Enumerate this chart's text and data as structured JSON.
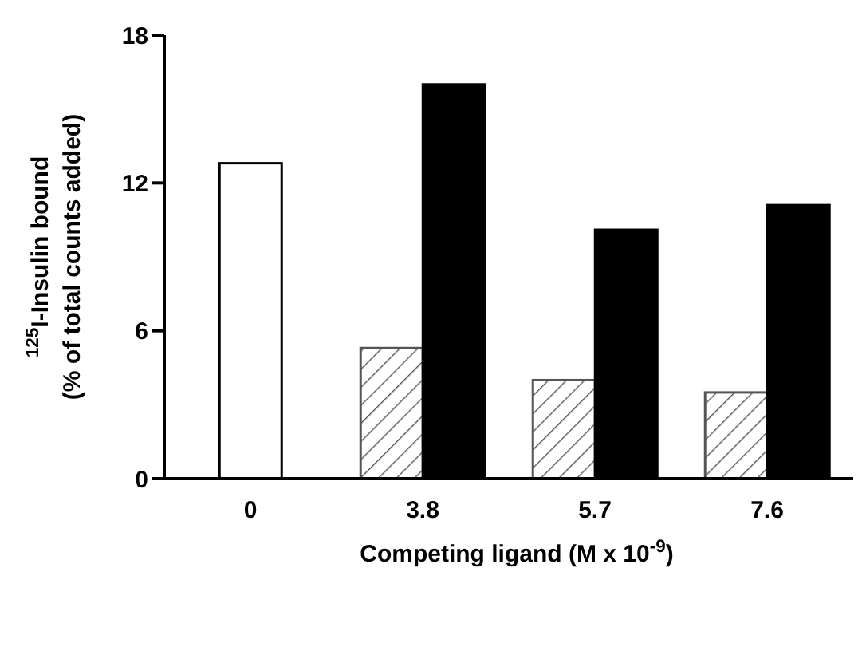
{
  "chart_data": {
    "type": "bar",
    "xlabel": "Competing ligand (M x 10$^{-9}$)",
    "ylabel": "$^{125}$I-Insulin bound\n(% of total counts added)",
    "categories": [
      "0",
      "3.8",
      "5.7",
      "7.6"
    ],
    "series": [
      {
        "colors": [
          "#ffffff",
          "#555555",
          "#555555",
          "#555555"
        ],
        "values": [
          12.8,
          5.3,
          4.0,
          3.5
        ]
      },
      {
        "color": "#000000",
        "values": [
          null,
          16,
          10.1,
          11.1
        ]
      }
    ],
    "ylim": [
      0,
      18
    ],
    "yticks": [
      0,
      6,
      12,
      18
    ],
    "grid": false
  }
}
